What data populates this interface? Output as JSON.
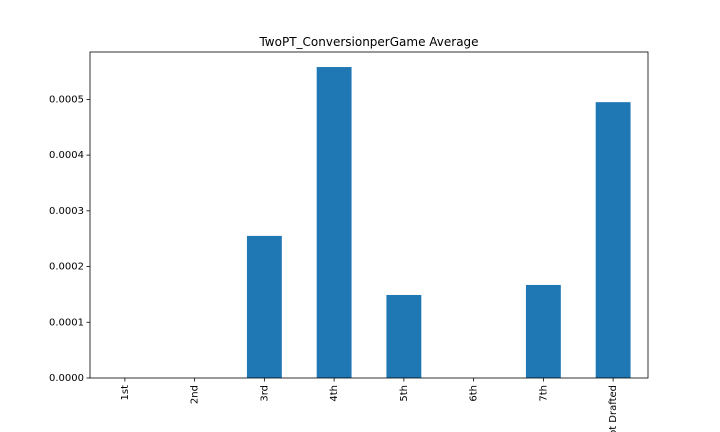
{
  "chart_data": {
    "type": "bar",
    "title": "TwoPT_ConversionperGame Average",
    "xlabel": "",
    "ylabel": "",
    "categories": [
      "1st",
      "2nd",
      "3rd",
      "4th",
      "5th",
      "6th",
      "7th",
      "Not Drafted"
    ],
    "values": [
      0.0,
      0.0,
      0.000255,
      0.000558,
      0.000149,
      0.0,
      0.000167,
      0.000495
    ],
    "ylim": [
      0,
      0.000585
    ],
    "yticks": [
      0.0,
      0.0001,
      0.0002,
      0.0003,
      0.0004,
      0.0005
    ],
    "ytick_labels": [
      "0.0000",
      "0.0001",
      "0.0002",
      "0.0003",
      "0.0004",
      "0.0005"
    ],
    "grid": false,
    "legend": "none",
    "colors": {
      "bar": "#1f77b4",
      "axis": "#000000"
    }
  }
}
